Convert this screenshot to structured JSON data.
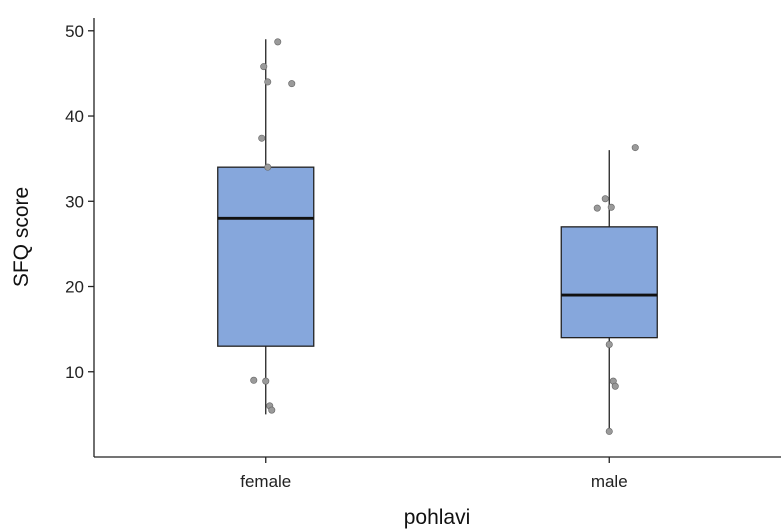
{
  "chart_data": {
    "type": "boxplot",
    "title": "",
    "xlabel": "pohlavi",
    "ylabel": "SFQ score",
    "categories": [
      "female",
      "male"
    ],
    "ylim": [
      0,
      51.5
    ],
    "yticks": [
      10,
      20,
      30,
      40,
      50
    ],
    "grid": false,
    "box_color": "#86a7dc",
    "point_color": "#9a9a9a",
    "boxes": [
      {
        "category": "female",
        "whisker_low": 5,
        "q1": 13,
        "median": 28,
        "q3": 34,
        "whisker_high": 49
      },
      {
        "category": "male",
        "whisker_low": 3,
        "q1": 14,
        "median": 19,
        "q3": 27,
        "whisker_high": 36
      }
    ],
    "points": [
      {
        "category": "female",
        "values": [
          48.7,
          45.8,
          44,
          43.8,
          37.4,
          34,
          9,
          8.9,
          6,
          5.5
        ]
      },
      {
        "category": "male",
        "values": [
          36.3,
          30.3,
          29.3,
          29.2,
          13.2,
          8.9,
          8.3,
          3
        ]
      }
    ]
  }
}
